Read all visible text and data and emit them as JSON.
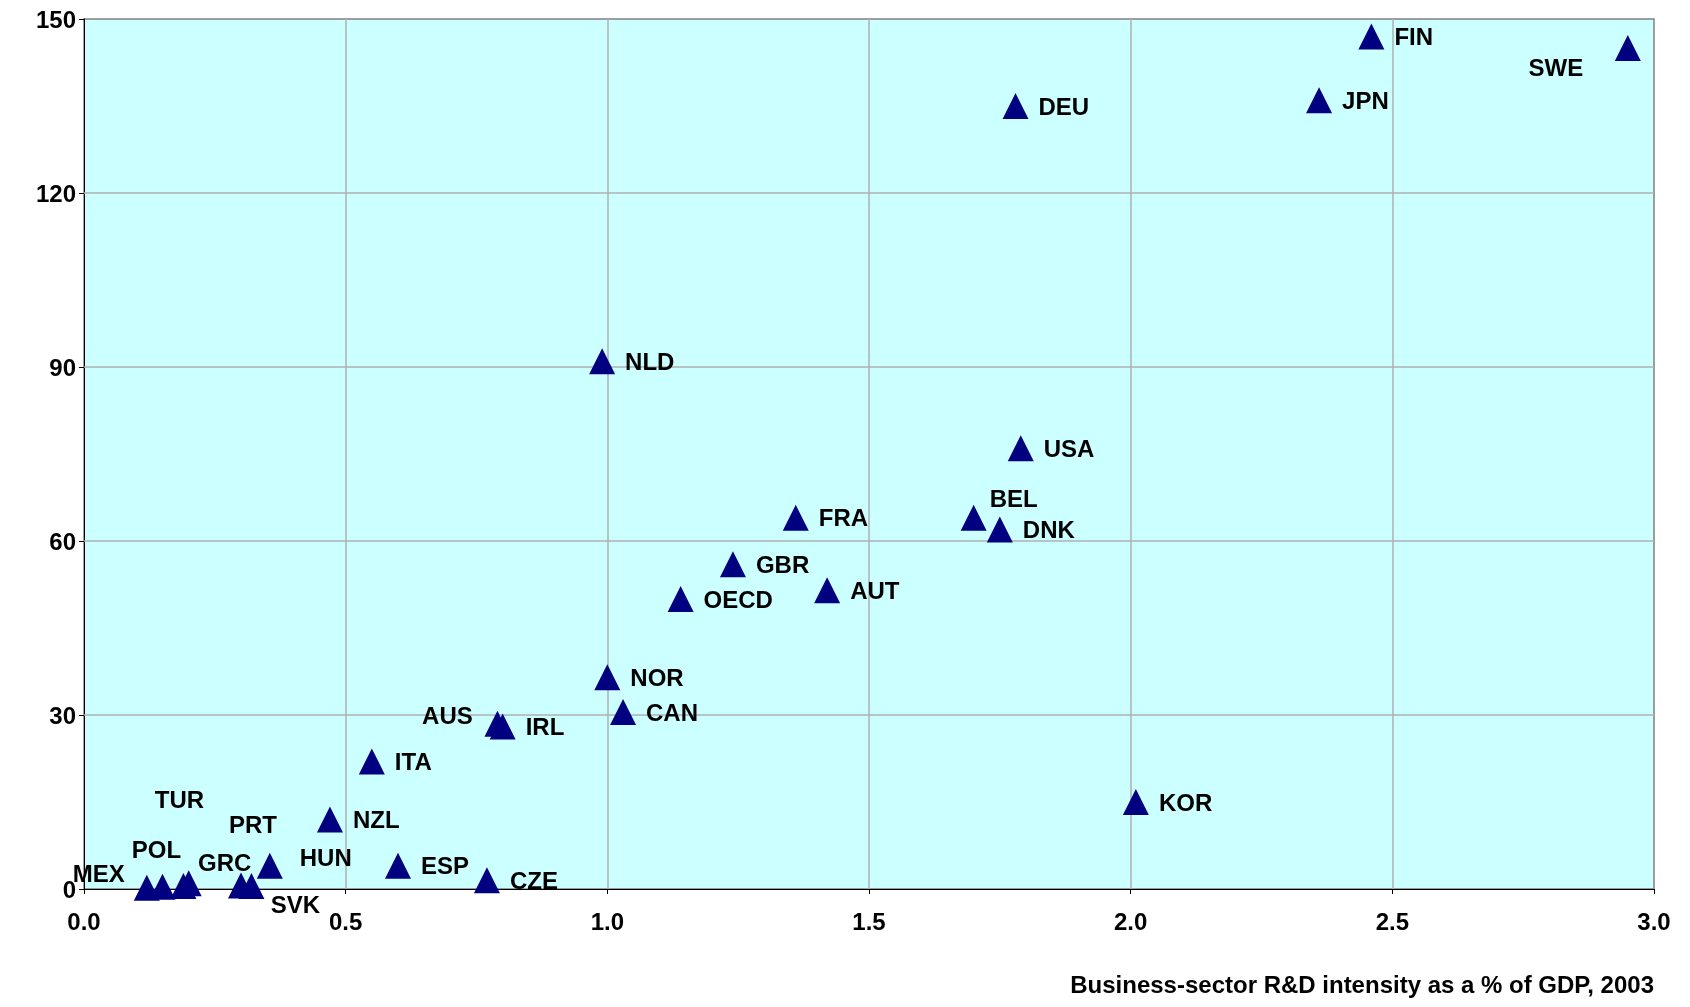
{
  "chart_data": {
    "type": "scatter",
    "xlabel": "Business-sector R&D intensity as a % of GDP, 2003",
    "x": [
      2.46,
      2.95,
      1.78,
      2.36,
      0.99,
      1.79,
      1.7,
      1.75,
      1.36,
      1.24,
      1.42,
      1.14,
      1.0,
      1.03,
      0.79,
      0.8,
      0.55,
      2.01,
      0.47,
      0.355,
      0.6,
      0.77,
      0.12,
      0.15,
      0.19,
      0.2,
      0.3,
      0.32
    ],
    "series": [
      {
        "color": "#000080",
        "values": [
          147,
          145,
          135,
          136,
          91,
          76,
          64,
          62,
          64,
          56,
          51.5,
          50,
          36.5,
          30.5,
          28.5,
          28,
          22,
          15,
          12,
          4,
          4,
          1.5,
          0.2,
          0.4,
          0.5,
          1,
          0.6,
          0.5
        ],
        "value_labels": [
          "FIN",
          "SWE",
          "DEU",
          "JPN",
          "NLD",
          "USA",
          "BEL",
          "DNK",
          "FRA",
          "GBR",
          "AUT",
          "OECD",
          "NOR",
          "CAN",
          "AUS",
          "IRL",
          "ITA",
          "KOR",
          "NZL",
          "HUN",
          "ESP",
          "CZE",
          "MEX",
          "TUR",
          "POL",
          "GRC",
          "PRT",
          "SVK"
        ]
      }
    ],
    "xlim": [
      0,
      3
    ],
    "xticks": [
      {
        "value": 0,
        "label": "0.0"
      },
      0.5,
      {
        "value": 1,
        "label": "1.0"
      },
      1.5,
      {
        "value": 2,
        "label": "2.0"
      },
      2.5,
      {
        "value": 3,
        "label": "3.0"
      }
    ],
    "ylim": [
      0,
      150
    ],
    "yticks": [
      0,
      30,
      60,
      90,
      120,
      150
    ],
    "grid": true,
    "marker": "triangle"
  }
}
